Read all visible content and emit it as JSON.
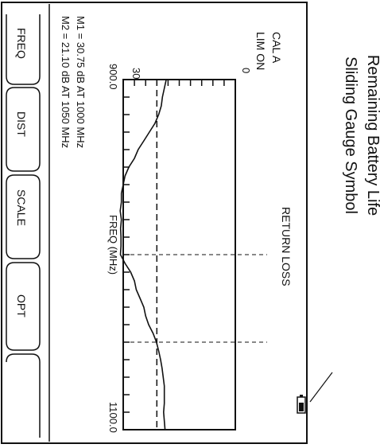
{
  "annotation": {
    "line1": "Remaining Battery Life",
    "line2": "Sliding Gauge Symbol"
  },
  "screen": {
    "cal_line1": "CAL A",
    "cal_line2": "LIM ON",
    "y_top": "0",
    "y_bottom": "30",
    "title": "RETURN LOSS",
    "x_start": "900.0",
    "x_end": "1100.0",
    "xlabel": "FREQ (MHz)",
    "marker1": "M1 = 30.75 dB AT 1000 MHz",
    "marker2": "M2 = 21.10 dB AT 1050 MHz"
  },
  "softkeys": [
    {
      "label": "FREQ"
    },
    {
      "label": "DIST"
    },
    {
      "label": "SCALE"
    },
    {
      "label": "OPT"
    },
    {
      "label": ""
    }
  ],
  "chart_data": {
    "type": "line",
    "title": "RETURN LOSS",
    "xlabel": "FREQ (MHz)",
    "ylabel": "",
    "xlim": [
      900,
      1100
    ],
    "ylim": [
      0,
      30
    ],
    "limit_line": 21,
    "markers": [
      {
        "name": "M1",
        "x": 1000,
        "y": 30.75
      },
      {
        "name": "M2",
        "x": 1050,
        "y": 21.1
      }
    ],
    "series": [
      {
        "x": [
          900,
          905,
          910,
          915,
          920,
          925,
          930,
          935,
          940,
          945,
          950,
          955,
          960,
          965,
          970,
          975,
          980,
          985,
          990,
          995,
          1000,
          1005,
          1010,
          1015,
          1020,
          1025,
          1030,
          1035,
          1040,
          1045,
          1050,
          1055,
          1060,
          1065,
          1070,
          1075,
          1080,
          1085,
          1090,
          1095,
          1100
        ],
        "y": [
          18.5,
          19,
          19.5,
          19.8,
          20.5,
          21.5,
          23,
          24.5,
          26,
          27,
          28.5,
          29.5,
          30,
          30.5,
          30.5,
          30.8,
          30.5,
          30.7,
          30.6,
          30.6,
          30.75,
          29.5,
          28,
          27,
          26.5,
          25.5,
          24.5,
          24,
          23.2,
          22,
          21.1,
          20.5,
          20.0,
          19.6,
          19.3,
          19.0,
          19.0,
          19.0,
          19.2,
          19.0,
          18.8
        ]
      }
    ]
  }
}
